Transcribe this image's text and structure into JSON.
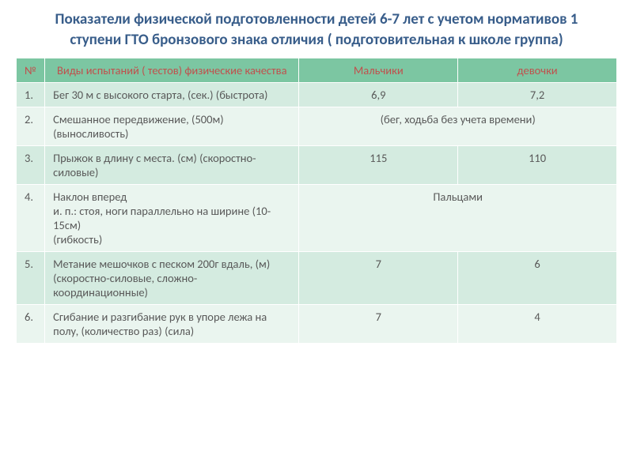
{
  "title": "Показатели физической подготовленности детей 6-7 лет с учетом нормативов 1 ступени ГТО бронзового знака отличия ( подготовительная к школе группа)",
  "title_color": "#385d8a",
  "title_fontsize": 19,
  "header_bg": "#7cc6a2",
  "header_fg": "#c0504d",
  "row_odd_bg": "#d4ebe0",
  "row_even_bg": "#eaf5ef",
  "cell_fontsize": 14.5,
  "cell_color": "#595959",
  "headers": {
    "num": "№",
    "desc": "Виды испытаний ( тестов) физические качества",
    "boys": "Мальчики",
    "girls": "девочки"
  },
  "rows": [
    {
      "num": "1.",
      "desc": "Бег 30 м с высокого старта, (сек.) (быстрота)",
      "boys": "6,9",
      "girls": "7,2",
      "merged": false
    },
    {
      "num": "2.",
      "desc": "Смешанное передвижение, (500м) (выносливость)",
      "merged_text": "(бег, ходьба без учета времени)",
      "merged": true
    },
    {
      "num": "3.",
      "desc": "Прыжок в длину с места. (см) (скоростно-силовые)",
      "boys": "115",
      "girls": "110",
      "merged": false
    },
    {
      "num": "4.",
      "desc": "Наклон вперед\nи. п.: стоя, ноги параллельно на ширине (10-15см)\n(гибкость)",
      "merged_text": "Пальцами",
      "merged": true
    },
    {
      "num": "5.",
      "desc": "Метание мешочков с песком 200г вдаль, (м)\n(скоростно-силовые, сложно-координационные)",
      "boys": "7",
      "girls": "6",
      "merged": false
    },
    {
      "num": "6.",
      "desc": "Сгибание и разгибание рук в упоре лежа на полу, (количество раз) (сила)",
      "boys": "7",
      "girls": "4",
      "merged": false
    }
  ]
}
